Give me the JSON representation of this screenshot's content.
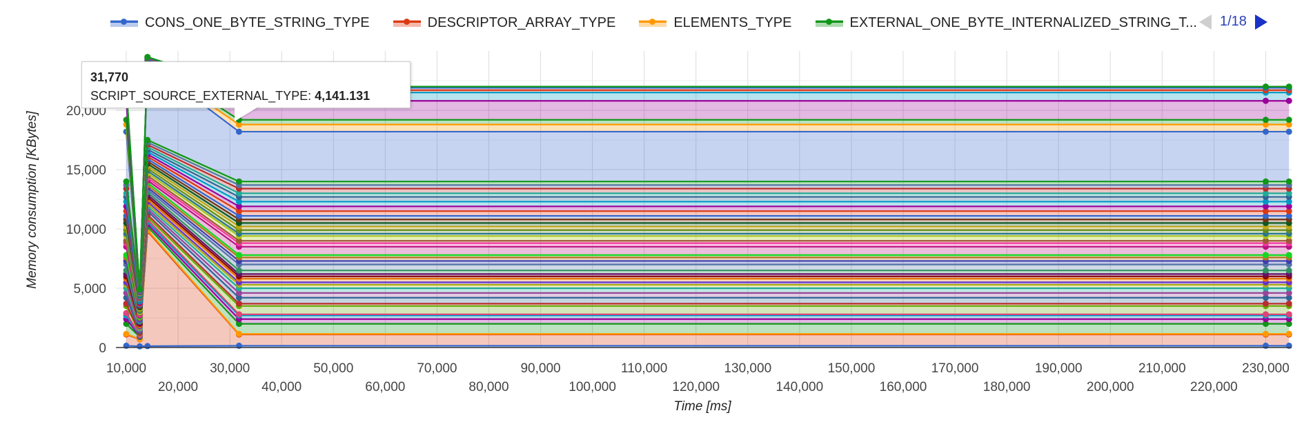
{
  "legend": {
    "items": [
      {
        "label": "CONS_ONE_BYTE_STRING_TYPE",
        "color": "#3366cc"
      },
      {
        "label": "DESCRIPTOR_ARRAY_TYPE",
        "color": "#dc3912"
      },
      {
        "label": "ELEMENTS_TYPE",
        "color": "#ff9900"
      },
      {
        "label": "EXTERNAL_ONE_BYTE_INTERNALIZED_STRING_T...",
        "color": "#109618"
      }
    ],
    "page": "1/18"
  },
  "tooltip": {
    "x_value": "31,770",
    "series": "SCRIPT_SOURCE_EXTERNAL_TYPE:",
    "value": "4,141.131"
  },
  "chart_data": {
    "type": "area",
    "stacked": true,
    "xlabel": "Time [ms]",
    "ylabel": "Memory consumption [KBytes]",
    "xlim": [
      8000,
      235000
    ],
    "ylim": [
      0,
      25000
    ],
    "x": [
      10000,
      12600,
      14100,
      31770,
      230000,
      234500
    ],
    "x_ticks_upper": [
      "10,000",
      "30,000",
      "50,000",
      "70,000",
      "90,000",
      "110,000",
      "130,000",
      "150,000",
      "170,000",
      "190,000",
      "210,000",
      "230,000"
    ],
    "x_ticks_upper_values": [
      10000,
      30000,
      50000,
      70000,
      90000,
      110000,
      130000,
      150000,
      170000,
      190000,
      210000,
      230000
    ],
    "x_ticks_lower": [
      "20,000",
      "40,000",
      "60,000",
      "80,000",
      "100,000",
      "120,000",
      "140,000",
      "160,000",
      "180,000",
      "200,000",
      "220,000"
    ],
    "x_ticks_lower_values": [
      20000,
      40000,
      60000,
      80000,
      100000,
      120000,
      140000,
      160000,
      180000,
      200000,
      220000
    ],
    "y_ticks": [
      "0",
      "5,000",
      "10,000",
      "15,000",
      "20,000"
    ],
    "y_ticks_values": [
      0,
      5000,
      10000,
      15000,
      20000
    ],
    "grid": true,
    "legend_position": "top",
    "series": [
      {
        "color": "#3366cc",
        "values": [
          150,
          100,
          120,
          150,
          150,
          150
        ]
      },
      {
        "color": "#dc3912",
        "values": [
          1100,
          700,
          9800,
          1100,
          1100,
          1100
        ]
      },
      {
        "color": "#ff9900",
        "values": [
          1150,
          720,
          9900,
          1150,
          1150,
          1150
        ]
      },
      {
        "color": "#109618",
        "values": [
          2000,
          900,
          10200,
          2000,
          2000,
          2000
        ]
      },
      {
        "color": "#990099",
        "values": [
          2400,
          950,
          10400,
          2400,
          2400,
          2400
        ]
      },
      {
        "color": "#0099c6",
        "values": [
          2700,
          1000,
          10600,
          2700,
          2700,
          2700
        ]
      },
      {
        "color": "#dd4477",
        "values": [
          2900,
          1050,
          10800,
          2800,
          2800,
          2800
        ]
      },
      {
        "color": "#66aa00",
        "values": [
          3500,
          1200,
          11000,
          3500,
          3500,
          3500
        ]
      },
      {
        "color": "#b82e2e",
        "values": [
          3700,
          1250,
          11200,
          3700,
          3700,
          3700
        ]
      },
      {
        "color": "#316395",
        "values": [
          4200,
          1400,
          11500,
          4200,
          4200,
          4200
        ]
      },
      {
        "color": "#994499",
        "values": [
          4600,
          1500,
          11700,
          4600,
          4600,
          4600
        ]
      },
      {
        "color": "#22aa99",
        "values": [
          5000,
          1600,
          11900,
          5000,
          5000,
          5000
        ]
      },
      {
        "color": "#aaaa11",
        "values": [
          5300,
          1700,
          12100,
          5300,
          5300,
          5300
        ]
      },
      {
        "color": "#6633cc",
        "values": [
          5500,
          1800,
          12300,
          5500,
          5500,
          5500
        ]
      },
      {
        "color": "#e67300",
        "values": [
          5800,
          1900,
          12500,
          5800,
          5800,
          5800
        ]
      },
      {
        "color": "#8b0707",
        "values": [
          6000,
          2000,
          12700,
          6000,
          6000,
          6000
        ]
      },
      {
        "color": "#651067",
        "values": [
          6200,
          2100,
          12900,
          6200,
          6200,
          6200
        ]
      },
      {
        "color": "#329262",
        "values": [
          6500,
          2200,
          13100,
          6500,
          6500,
          6500
        ]
      },
      {
        "color": "#5574a6",
        "values": [
          7000,
          2300,
          13300,
          7000,
          7000,
          7000
        ]
      },
      {
        "color": "#3b3eac",
        "values": [
          7300,
          2400,
          13500,
          7300,
          7300,
          7300
        ]
      },
      {
        "color": "#b77322",
        "values": [
          7600,
          2500,
          13700,
          7600,
          7600,
          7600
        ]
      },
      {
        "color": "#16d620",
        "values": [
          7800,
          2600,
          13900,
          7800,
          7800,
          7800
        ]
      },
      {
        "color": "#b91383",
        "values": [
          8500,
          2700,
          14100,
          8500,
          8500,
          8500
        ]
      },
      {
        "color": "#f4359e",
        "values": [
          8800,
          2800,
          14300,
          8800,
          8800,
          8800
        ]
      },
      {
        "color": "#9c5935",
        "values": [
          9000,
          2900,
          14500,
          9000,
          9000,
          9000
        ]
      },
      {
        "color": "#a9c413",
        "values": [
          9400,
          3000,
          14700,
          9400,
          9400,
          9400
        ]
      },
      {
        "color": "#2a778d",
        "values": [
          9600,
          3100,
          14900,
          9600,
          9600,
          9600
        ]
      },
      {
        "color": "#668d1c",
        "values": [
          9900,
          3200,
          15100,
          9900,
          9900,
          9900
        ]
      },
      {
        "color": "#bea413",
        "values": [
          10200,
          3300,
          15300,
          10200,
          10200,
          10200
        ]
      },
      {
        "color": "#0c5922",
        "values": [
          10500,
          3400,
          15500,
          10500,
          10500,
          10500
        ]
      },
      {
        "color": "#743411",
        "values": [
          10800,
          3500,
          15700,
          10800,
          10800,
          10800
        ]
      },
      {
        "color": "#3366cc",
        "values": [
          11100,
          3600,
          15900,
          11100,
          11100,
          11100
        ]
      },
      {
        "color": "#dc3912",
        "values": [
          11500,
          3700,
          16100,
          11500,
          11500,
          11500
        ]
      },
      {
        "color": "#990099",
        "values": [
          11900,
          3800,
          16300,
          11900,
          11900,
          11900
        ]
      },
      {
        "color": "#0099c6",
        "values": [
          12300,
          3900,
          16500,
          12300,
          12300,
          12300
        ]
      },
      {
        "color": "#316395",
        "values": [
          12700,
          4000,
          16700,
          12700,
          12700,
          12700
        ]
      },
      {
        "color": "#22aa99",
        "values": [
          13000,
          4100,
          16900,
          13000,
          13000,
          13000
        ]
      },
      {
        "color": "#b82e2e",
        "values": [
          13400,
          4200,
          17100,
          13400,
          13400,
          13400
        ]
      },
      {
        "color": "#5574a6",
        "values": [
          13700,
          4300,
          17300,
          13700,
          13700,
          13700
        ]
      },
      {
        "color": "#109618",
        "values": [
          14000,
          4400,
          17500,
          14000,
          14000,
          14000
        ]
      },
      {
        "color": "#3366cc",
        "values": [
          18200,
          4500,
          24000,
          18200,
          18200,
          18200
        ]
      },
      {
        "color": "#ff9900",
        "values": [
          18800,
          4600,
          24100,
          18800,
          18800,
          18800
        ]
      },
      {
        "color": "#109618",
        "values": [
          19200,
          4650,
          24200,
          19200,
          19200,
          19200
        ]
      },
      {
        "color": "#990099",
        "values": [
          20800,
          4700,
          24300,
          20800,
          20800,
          20800
        ]
      },
      {
        "color": "#0099c6",
        "values": [
          21500,
          4750,
          24350,
          21500,
          21500,
          21500
        ]
      },
      {
        "color": "#dc3912",
        "values": [
          21700,
          4800,
          24400,
          21700,
          21700,
          21700
        ]
      },
      {
        "color": "#3366cc",
        "values": [
          21900,
          4850,
          24450,
          21900,
          21900,
          21900
        ]
      },
      {
        "color": "#109618",
        "values": [
          22000,
          4900,
          24500,
          22000,
          22000,
          22000
        ]
      }
    ]
  }
}
